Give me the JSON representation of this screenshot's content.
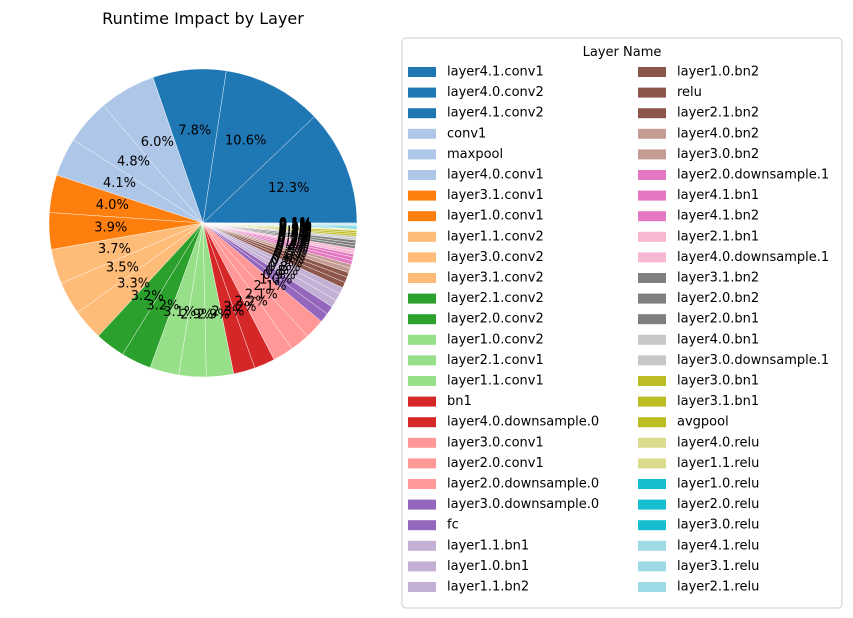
{
  "chart_data": {
    "type": "pie",
    "title": "Runtime Impact by Layer",
    "legend_title": "Layer Name",
    "legend_placement": "right",
    "start_angle_deg": 0,
    "direction": "counterclockwise",
    "slices": [
      {
        "label": "layer4.1.conv1",
        "value": 12.3,
        "color": "#1f77b4",
        "pct_label": "12.3%"
      },
      {
        "label": "layer4.0.conv2",
        "value": 10.6,
        "color": "#1f77b4",
        "pct_label": "10.6%"
      },
      {
        "label": "layer4.1.conv2",
        "value": 7.8,
        "color": "#1f77b4",
        "pct_label": "7.8%"
      },
      {
        "label": "conv1",
        "value": 6.0,
        "color": "#aec7e8",
        "pct_label": "6.0%"
      },
      {
        "label": "maxpool",
        "value": 4.8,
        "color": "#aec7e8",
        "pct_label": "4.8%"
      },
      {
        "label": "layer4.0.conv1",
        "value": 4.1,
        "color": "#aec7e8",
        "pct_label": "4.1%"
      },
      {
        "label": "layer3.1.conv1",
        "value": 4.0,
        "color": "#ff7f0e",
        "pct_label": "4.0%"
      },
      {
        "label": "layer1.0.conv1",
        "value": 3.9,
        "color": "#ff7f0e",
        "pct_label": "3.9%"
      },
      {
        "label": "layer1.1.conv2",
        "value": 3.7,
        "color": "#ffbb78",
        "pct_label": "3.7%"
      },
      {
        "label": "layer3.0.conv2",
        "value": 3.5,
        "color": "#ffbb78",
        "pct_label": "3.5%"
      },
      {
        "label": "layer3.1.conv2",
        "value": 3.3,
        "color": "#ffbb78",
        "pct_label": "3.3%"
      },
      {
        "label": "layer2.1.conv2",
        "value": 3.2,
        "color": "#2ca02c",
        "pct_label": "3.2%"
      },
      {
        "label": "layer2.0.conv2",
        "value": 3.2,
        "color": "#2ca02c",
        "pct_label": "3.2%"
      },
      {
        "label": "layer1.0.conv2",
        "value": 3.1,
        "color": "#98df8a",
        "pct_label": "3.1%"
      },
      {
        "label": "layer2.1.conv1",
        "value": 2.9,
        "color": "#98df8a",
        "pct_label": "2.9%"
      },
      {
        "label": "layer1.1.conv1",
        "value": 2.9,
        "color": "#98df8a",
        "pct_label": "2.9%"
      },
      {
        "label": "bn1",
        "value": 2.3,
        "color": "#d62728",
        "pct_label": "2.3%"
      },
      {
        "label": "layer4.0.downsample.0",
        "value": 2.2,
        "color": "#d62728",
        "pct_label": "2.2%"
      },
      {
        "label": "layer3.0.conv1",
        "value": 2.2,
        "color": "#ff9896",
        "pct_label": "2.2%"
      },
      {
        "label": "layer2.0.conv1",
        "value": 2.1,
        "color": "#ff9896",
        "pct_label": "2.1%"
      },
      {
        "label": "layer2.0.downsample.0",
        "value": 2.1,
        "color": "#ff9896",
        "pct_label": "2.1%"
      },
      {
        "label": "layer3.0.downsample.0",
        "value": 1.0,
        "color": "#9467bd",
        "pct_label": "1.0%"
      },
      {
        "label": "fc",
        "value": 0.9,
        "color": "#9467bd",
        "pct_label": "0.9%"
      },
      {
        "label": "layer1.1.bn1",
        "value": 0.8,
        "color": "#c5b0d5",
        "pct_label": "0.8%"
      },
      {
        "label": "layer1.0.bn1",
        "value": 0.8,
        "color": "#c5b0d5",
        "pct_label": "0.8%"
      },
      {
        "label": "layer1.1.bn2",
        "value": 0.7,
        "color": "#c5b0d5",
        "pct_label": "0.7%"
      },
      {
        "label": "layer1.0.bn2",
        "value": 0.6,
        "color": "#8c564b",
        "pct_label": "0.6%"
      },
      {
        "label": "relu",
        "value": 0.6,
        "color": "#8c564b",
        "pct_label": "0.6%"
      },
      {
        "label": "layer2.1.bn2",
        "value": 0.5,
        "color": "#8c564b",
        "pct_label": "0.5%"
      },
      {
        "label": "layer4.0.bn2",
        "value": 0.5,
        "color": "#c49c94",
        "pct_label": "0.5%"
      },
      {
        "label": "layer3.0.bn2",
        "value": 0.4,
        "color": "#c49c94",
        "pct_label": "0.4%"
      },
      {
        "label": "layer2.0.downsample.1",
        "value": 0.4,
        "color": "#e377c2",
        "pct_label": "0.4%"
      },
      {
        "label": "layer4.1.bn1",
        "value": 0.4,
        "color": "#e377c2",
        "pct_label": "0.4%"
      },
      {
        "label": "layer4.1.bn2",
        "value": 0.3,
        "color": "#e377c2",
        "pct_label": "0.3%"
      },
      {
        "label": "layer2.1.bn1",
        "value": 0.3,
        "color": "#f7b6d2",
        "pct_label": "0.3%"
      },
      {
        "label": "layer4.0.downsample.1",
        "value": 0.3,
        "color": "#f7b6d2",
        "pct_label": "0.3%"
      },
      {
        "label": "layer3.1.bn2",
        "value": 0.3,
        "color": "#7f7f7f",
        "pct_label": "0.3%"
      },
      {
        "label": "layer2.0.bn2",
        "value": 0.3,
        "color": "#7f7f7f",
        "pct_label": "0.3%"
      },
      {
        "label": "layer2.0.bn1",
        "value": 0.3,
        "color": "#7f7f7f",
        "pct_label": "0.3%"
      },
      {
        "label": "layer4.0.bn1",
        "value": 0.2,
        "color": "#c7c7c7",
        "pct_label": "0.2%"
      },
      {
        "label": "layer3.0.downsample.1",
        "value": 0.2,
        "color": "#c7c7c7",
        "pct_label": "0.2%"
      },
      {
        "label": "layer3.0.bn1",
        "value": 0.2,
        "color": "#bcbd22",
        "pct_label": "0.2%"
      },
      {
        "label": "layer3.1.bn1",
        "value": 0.2,
        "color": "#bcbd22",
        "pct_label": "0.2%"
      },
      {
        "label": "avgpool",
        "value": 0.2,
        "color": "#bcbd22",
        "pct_label": "0.2%"
      },
      {
        "label": "layer4.0.relu",
        "value": 0.1,
        "color": "#dbdb8d",
        "pct_label": "0.1%"
      },
      {
        "label": "layer1.1.relu",
        "value": 0.1,
        "color": "#dbdb8d",
        "pct_label": "0.1%"
      },
      {
        "label": "layer1.0.relu",
        "value": 0.1,
        "color": "#17becf",
        "pct_label": "0.1%"
      },
      {
        "label": "layer2.0.relu",
        "value": 0.1,
        "color": "#17becf",
        "pct_label": "0.1%"
      },
      {
        "label": "layer3.0.relu",
        "value": 0.1,
        "color": "#17becf",
        "pct_label": "0.1%"
      },
      {
        "label": "layer4.1.relu",
        "value": 0.1,
        "color": "#9edae5",
        "pct_label": "0.1%"
      },
      {
        "label": "layer3.1.relu",
        "value": 0.1,
        "color": "#9edae5",
        "pct_label": "0.1%"
      },
      {
        "label": "layer2.1.relu",
        "value": 0.1,
        "color": "#9edae5",
        "pct_label": "0.1%"
      }
    ]
  }
}
